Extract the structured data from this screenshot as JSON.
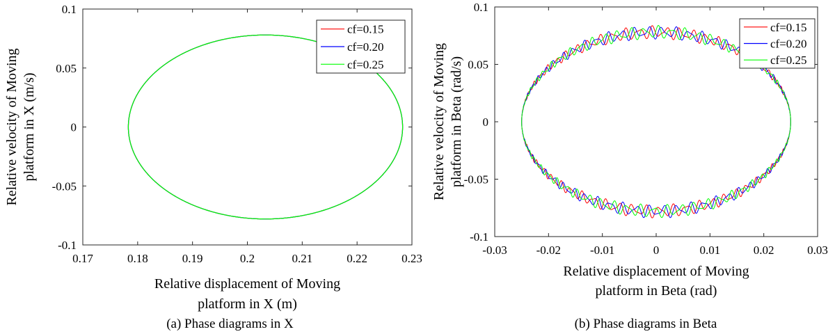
{
  "chart_data": [
    {
      "type": "line",
      "caption": "(a) Phase diagrams in X",
      "xlabel_lines": [
        "Relative displacement of Moving",
        "platform in X (m)"
      ],
      "ylabel_lines": [
        "Relative velocity of Moving",
        "platform in X (m/s)"
      ],
      "xlim": [
        0.17,
        0.23
      ],
      "ylim": [
        -0.1,
        0.1
      ],
      "xticks": [
        0.17,
        0.18,
        0.19,
        0.2,
        0.21,
        0.22,
        0.23
      ],
      "xtick_labels": [
        "0.17",
        "0.18",
        "0.19",
        "0.2",
        "0.21",
        "0.22",
        "0.23"
      ],
      "yticks": [
        -0.1,
        -0.05,
        0,
        0.05,
        0.1
      ],
      "ytick_labels": [
        "-0.1",
        "-0.05",
        "0",
        "0.05",
        "0.1"
      ],
      "legend_position": "top-right",
      "ellipse": {
        "x_center": 0.2033,
        "x_amplitude": 0.025,
        "y_amplitude": 0.078,
        "noise_amplitude": 0
      },
      "series": [
        {
          "name": "cf=0.15",
          "color": "#ff0000"
        },
        {
          "name": "cf=0.20",
          "color": "#0000ff"
        },
        {
          "name": "cf=0.25",
          "color": "#00ff00"
        }
      ]
    },
    {
      "type": "line",
      "caption": "(b) Phase diagrams in Beta",
      "xlabel_lines": [
        "Relative displacement of Moving",
        "platform in Beta (rad)"
      ],
      "ylabel_lines": [
        "Relative velocity of Moving",
        "platform in Beta (rad/s)"
      ],
      "xlim": [
        -0.03,
        0.03
      ],
      "ylim": [
        -0.1,
        0.1
      ],
      "xticks": [
        -0.03,
        -0.02,
        -0.01,
        0,
        0.01,
        0.02,
        0.03
      ],
      "xtick_labels": [
        "-0.03",
        "-0.02",
        "-0.01",
        "0",
        "0.01",
        "0.02",
        "0.03"
      ],
      "yticks": [
        -0.1,
        -0.05,
        0,
        0.05,
        0.1
      ],
      "ytick_labels": [
        "-0.1",
        "-0.05",
        "0",
        "0.05",
        "0.1"
      ],
      "legend_position": "top-right",
      "ellipse": {
        "x_center": 0,
        "x_amplitude": 0.025,
        "y_amplitude": 0.078,
        "noise_amplitude": 0.004
      },
      "series": [
        {
          "name": "cf=0.15",
          "color": "#ff0000"
        },
        {
          "name": "cf=0.20",
          "color": "#0000ff"
        },
        {
          "name": "cf=0.25",
          "color": "#00ff00"
        }
      ]
    }
  ]
}
